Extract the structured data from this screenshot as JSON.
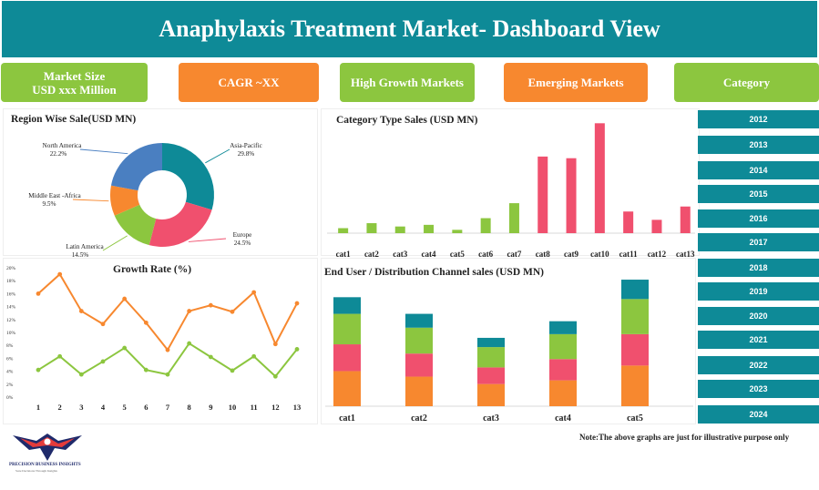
{
  "header": {
    "title": "Anaphylaxis Treatment Market- Dashboard View"
  },
  "kpis": {
    "market_size_line1": "Market Size",
    "market_size_line2": "USD xxx Million",
    "cagr": "CAGR  ~XX",
    "high_growth": "High Growth Markets",
    "emerging": "Emerging Markets",
    "category": "Category"
  },
  "years": [
    "2012",
    "2013",
    "2014",
    "2015",
    "2016",
    "2017",
    "2018",
    "2019",
    "2020",
    "2021",
    "2022",
    "2023",
    "2024"
  ],
  "note": "Note:The above graphs are just for illustrative purpose only",
  "logo": {
    "name": "PRECISION BUSINESS INSIGHTS",
    "tagline": "Sure Decisions Through Insights"
  },
  "colors": {
    "teal": "#0e8a97",
    "green": "#8cc63f",
    "orange": "#f7882f",
    "pink": "#f0506e",
    "blue": "#4a7fc1"
  },
  "chart_data": [
    {
      "type": "pie",
      "title": "Region Wise Sale(USD MN)",
      "slices": [
        {
          "name": "Asia-Pacific",
          "label": "29.8%",
          "value": 29.8,
          "color": "#0e8a97"
        },
        {
          "name": "Europe",
          "label": "24.5%",
          "value": 24.5,
          "color": "#f0506e"
        },
        {
          "name": "Latin America",
          "label": "14.5%",
          "value": 14.5,
          "color": "#8cc63f"
        },
        {
          "name": "Middle East -Africa",
          "label": "9.5%",
          "value": 9.5,
          "color": "#f7882f"
        },
        {
          "name": "North America",
          "label": "22.2%",
          "value": 22.2,
          "color": "#4a7fc1"
        }
      ]
    },
    {
      "type": "bar",
      "title": "Category Type Sales (USD MN)",
      "categories": [
        "cat1",
        "cat2",
        "cat3",
        "cat4",
        "cat5",
        "cat6",
        "cat7",
        "cat8",
        "cat9",
        "cat10",
        "cat11",
        "cat12",
        "cat13"
      ],
      "values": [
        3,
        6,
        4,
        5,
        2,
        9,
        18,
        46,
        45,
        66,
        13,
        8,
        16
      ],
      "colors": [
        "#8cc63f",
        "#8cc63f",
        "#8cc63f",
        "#8cc63f",
        "#8cc63f",
        "#8cc63f",
        "#8cc63f",
        "#f0506e",
        "#f0506e",
        "#f0506e",
        "#f0506e",
        "#f0506e",
        "#f0506e"
      ],
      "ylim": [
        0,
        70
      ]
    },
    {
      "type": "line",
      "title": "Growth Rate (%)",
      "x": [
        1,
        2,
        3,
        4,
        5,
        6,
        7,
        8,
        9,
        10,
        11,
        12,
        13
      ],
      "yticks": [
        "0%",
        "2%",
        "4%",
        "6%",
        "8%",
        "10%",
        "12%",
        "14%",
        "16%",
        "18%",
        "20%"
      ],
      "ylim": [
        0,
        20
      ],
      "series": [
        {
          "color": "#f7882f",
          "values": [
            16,
            19,
            13.3,
            11.3,
            15.2,
            11.5,
            7.3,
            13.3,
            14.2,
            13.2,
            16.2,
            8.2,
            14.5
          ]
        },
        {
          "color": "#8cc63f",
          "values": [
            4.2,
            6.3,
            3.5,
            5.5,
            7.6,
            4.2,
            3.5,
            8.3,
            6.2,
            4.1,
            6.3,
            3.2,
            7.4
          ]
        }
      ]
    },
    {
      "type": "bar",
      "stacked": true,
      "title": "End User / Distribution Channel sales (USD MN)",
      "categories": [
        "cat1",
        "cat2",
        "cat3",
        "cat4",
        "cat5"
      ],
      "ylim": [
        0,
        140
      ],
      "series": [
        {
          "color": "#f7882f",
          "values": [
            38,
            32,
            24,
            28,
            44
          ]
        },
        {
          "color": "#f0506e",
          "values": [
            29,
            25,
            18,
            23,
            34
          ]
        },
        {
          "color": "#8cc63f",
          "values": [
            33,
            28,
            22,
            27,
            38
          ]
        },
        {
          "color": "#0e8a97",
          "values": [
            18,
            15,
            10,
            14,
            21
          ]
        }
      ]
    }
  ]
}
